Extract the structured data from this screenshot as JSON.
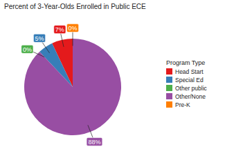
{
  "chart_data": {
    "type": "pie",
    "title": "Percent of 3-Year-Olds Enrolled in Public ECE",
    "legend_title": "Program Type",
    "categories": [
      "Head Start",
      "Special Ed",
      "Other public",
      "Other/None",
      "Pre-K"
    ],
    "values": [
      7,
      5,
      0,
      88,
      0
    ],
    "value_labels": [
      "7%",
      "5%",
      "0%",
      "88%",
      "0%"
    ],
    "colors": [
      "#e41a1c",
      "#377eb8",
      "#4daf4a",
      "#984ea3",
      "#ff7f00"
    ],
    "data_labels": true,
    "legend": "right"
  }
}
